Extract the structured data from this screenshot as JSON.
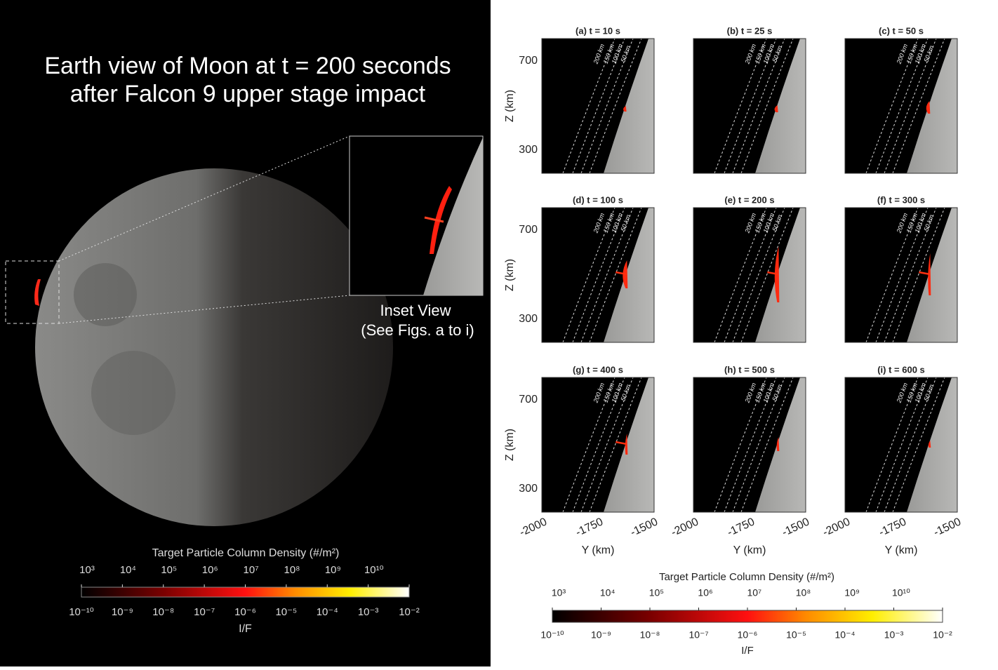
{
  "left": {
    "title_lines": [
      "Earth view of Moon at t = 200 seconds",
      "after Falcon 9 upper stage impact"
    ],
    "inset_label": [
      "Inset View",
      "(See Figs. a to i)"
    ],
    "colorbar": {
      "title": "Target Particle Column Density (#/m²)",
      "density_ticks": [
        "10³",
        "10⁴",
        "10⁵",
        "10⁶",
        "10⁷",
        "10⁸",
        "10⁹",
        "10¹⁰"
      ],
      "if_ticks": [
        "10⁻¹⁰",
        "10⁻⁹",
        "10⁻⁸",
        "10⁻⁷",
        "10⁻⁶",
        "10⁻⁵",
        "10⁻⁴",
        "10⁻³",
        "10⁻²"
      ],
      "axis_label": "I/F"
    }
  },
  "right": {
    "panels": [
      {
        "label": "(a)  t = 10 s"
      },
      {
        "label": "(b)  t = 25 s"
      },
      {
        "label": "(c)  t = 50 s"
      },
      {
        "label": "(d)  t = 100 s"
      },
      {
        "label": "(e)  t = 200 s"
      },
      {
        "label": "(f)  t = 300 s"
      },
      {
        "label": "(g)  t = 400 s"
      },
      {
        "label": "(h)  t = 500 s"
      },
      {
        "label": "(i)  t = 600 s"
      }
    ],
    "z_label": "Z (km)",
    "z_ticks": [
      "700",
      "300"
    ],
    "y_label": "Y (km)",
    "y_ticks": [
      "-2000",
      "-1750",
      "-1500"
    ],
    "contour_labels": [
      "200 km",
      "150 km",
      "100 km",
      "50 km"
    ],
    "colorbar": {
      "title": "Target  Particle  Column  Density  (#/m²)",
      "density_ticks": [
        "10³",
        "10⁴",
        "10⁵",
        "10⁶",
        "10⁷",
        "10⁸",
        "10⁹",
        "10¹⁰"
      ],
      "if_ticks": [
        "10⁻¹⁰",
        "10⁻⁹",
        "10⁻⁸",
        "10⁻⁷",
        "10⁻⁶",
        "10⁻⁵",
        "10⁻⁴",
        "10⁻³",
        "10⁻²"
      ],
      "axis_label": "I/F"
    }
  }
}
